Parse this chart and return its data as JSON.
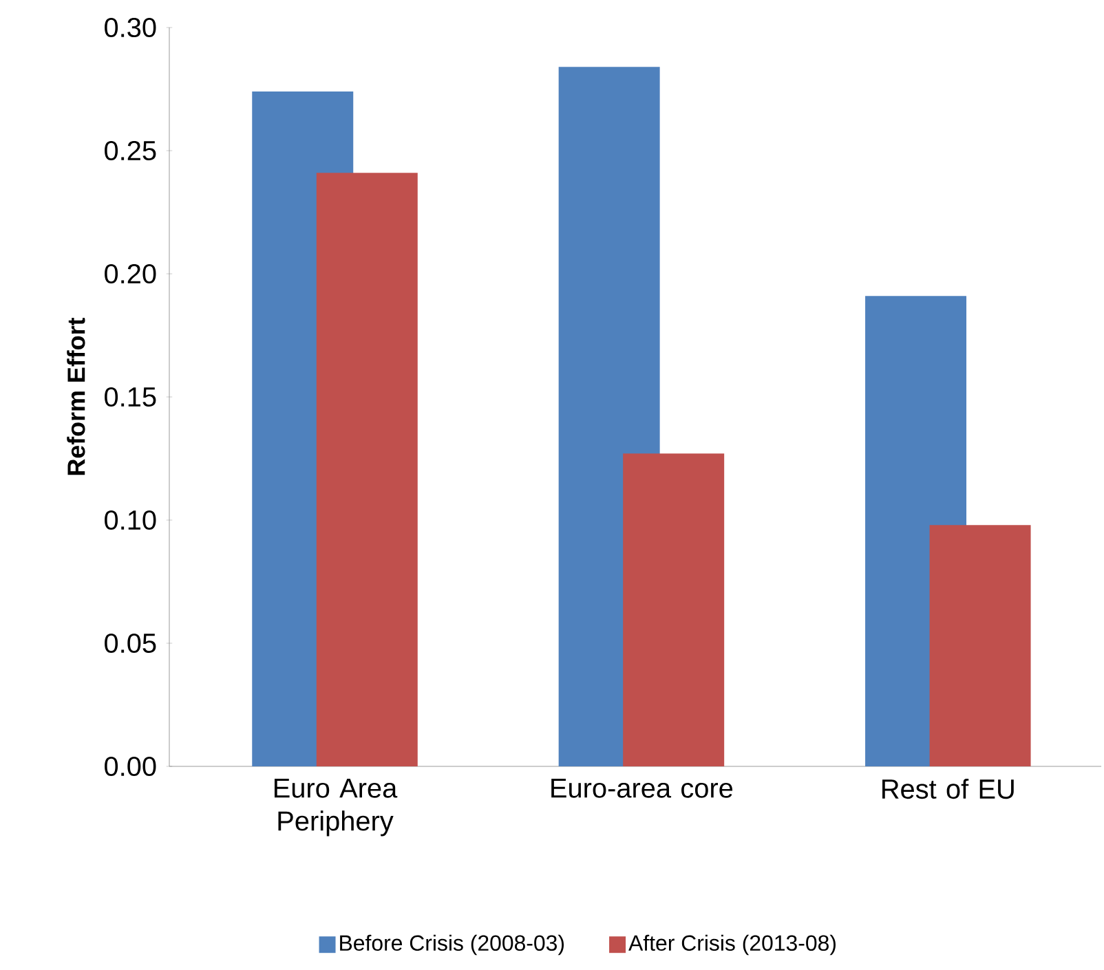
{
  "chart_data": {
    "type": "bar",
    "ylabel": "Reform Effort",
    "categories": [
      "Euro Area Periphery",
      "Euro-area core",
      "Rest of EU"
    ],
    "series": [
      {
        "name": "Before Crisis (2008-03)",
        "color": "#4f81bd",
        "values": [
          0.274,
          0.284,
          0.191
        ]
      },
      {
        "name": "After Crisis (2013-08)",
        "color": "#c0504d",
        "values": [
          0.241,
          0.127,
          0.098
        ]
      }
    ],
    "ylim": [
      0,
      0.3
    ],
    "yticks": [
      {
        "value": 0,
        "label": "0.00"
      },
      {
        "value": 0.05,
        "label": "0.05"
      },
      {
        "value": 0.1,
        "label": "0.10"
      },
      {
        "value": 0.15,
        "label": "0.15"
      },
      {
        "value": 0.2,
        "label": "0.20"
      },
      {
        "value": 0.25,
        "label": "0.25"
      },
      {
        "value": 0.3,
        "label": "0.30"
      }
    ],
    "grid": false,
    "legend": "bottom"
  }
}
